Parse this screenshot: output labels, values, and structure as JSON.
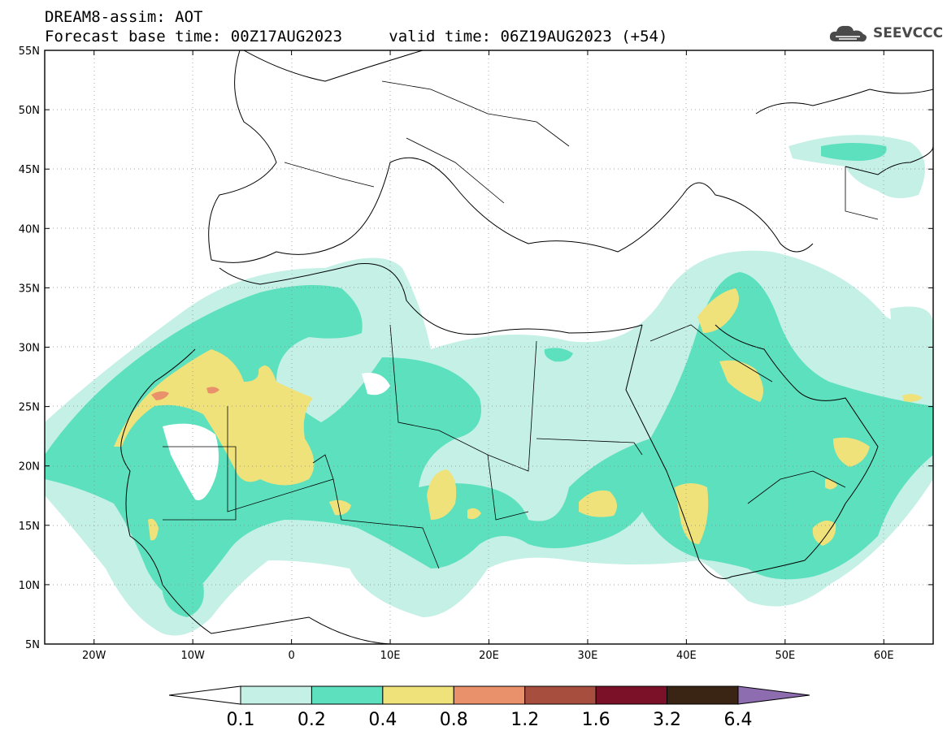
{
  "header": {
    "title": "DREAM8-assim: AOT",
    "base_time_label": "Forecast base time: 00Z17AUG2023",
    "valid_time_label": "valid time: 06Z19AUG2023 (+54)"
  },
  "logo": {
    "text": "SEEVCCC",
    "icon": "cloud-icon",
    "color": "#4a4a4a"
  },
  "map": {
    "lat_ticks": [
      "55N",
      "50N",
      "45N",
      "40N",
      "35N",
      "30N",
      "25N",
      "20N",
      "15N",
      "10N",
      "5N"
    ],
    "lon_ticks": [
      "20W",
      "10W",
      "0",
      "10E",
      "20E",
      "30E",
      "40E",
      "50E",
      "60E"
    ],
    "lat_range": [
      5,
      55
    ],
    "lon_range": [
      -25,
      65
    ]
  },
  "legend": {
    "colors": [
      "#ffffff",
      "#c4f0e6",
      "#5ce0be",
      "#f0e27a",
      "#e8916b",
      "#a84e3f",
      "#7a1128",
      "#3a2414",
      "#8e6cb0"
    ],
    "labels": [
      "0.1",
      "0.2",
      "0.4",
      "0.8",
      "1.2",
      "1.6",
      "3.2",
      "6.4"
    ]
  }
}
